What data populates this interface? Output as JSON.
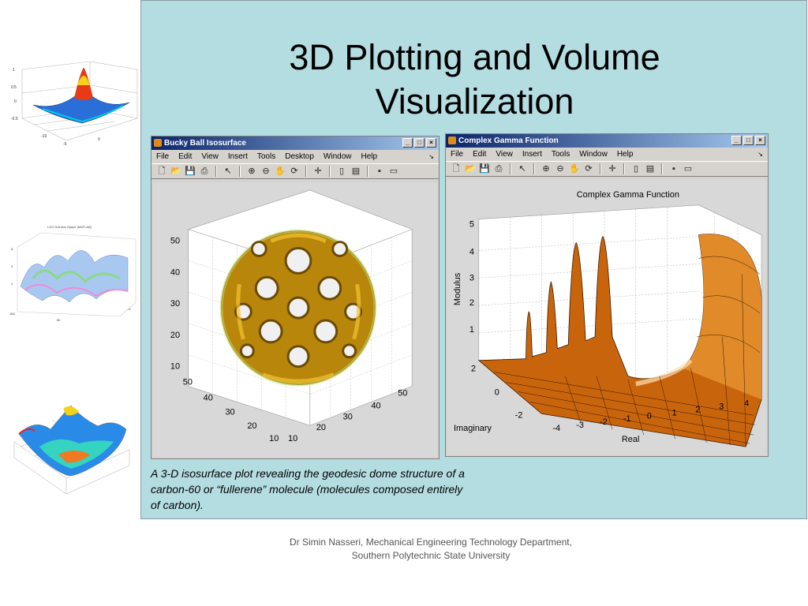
{
  "slide": {
    "title_line1": "3D Plotting and Volume",
    "title_line2": "Visualization",
    "caption": "A 3-D isosurface plot revealing the geodesic dome structure of a carbon-60 or “fullerene” molecule (molecules composed entirely of carbon).",
    "footer_line1": "Dr Simin Nasseri, Mechanical Engineering Technology Department,",
    "footer_line2": "Southern Polytechnic State University"
  },
  "window1": {
    "title": "Bucky Ball Isosurface",
    "menus": [
      "File",
      "Edit",
      "View",
      "Insert",
      "Tools",
      "Desktop",
      "Window",
      "Help"
    ],
    "z_ticks": [
      "50",
      "40",
      "30",
      "20",
      "10"
    ],
    "left_ticks": [
      "50",
      "40",
      "30",
      "20",
      "10"
    ],
    "right_ticks": [
      "10",
      "20",
      "30",
      "40",
      "50"
    ],
    "surface_color": "#d4a21c"
  },
  "window2": {
    "title": "Complex Gamma Function",
    "menus": [
      "File",
      "Edit",
      "View",
      "Insert",
      "Tools",
      "Window",
      "Help"
    ],
    "plot_title": "Complex Gamma Function",
    "z_label": "Modulus",
    "z_ticks": [
      "5",
      "4",
      "3",
      "2",
      "1"
    ],
    "x_label": "Real",
    "x_ticks": [
      "-4",
      "-3",
      "-2",
      "-1",
      "0",
      "1",
      "2",
      "3",
      "4"
    ],
    "y_label": "Imaginary",
    "y_ticks": [
      "2",
      "0",
      "-2"
    ],
    "surface_color": "#c8640c"
  },
  "thumbnails": {
    "thumb2_title": "LGO Solution Space (MATLAB)"
  },
  "window_buttons": {
    "minimize": "_",
    "maximize": "□",
    "close": "×"
  }
}
